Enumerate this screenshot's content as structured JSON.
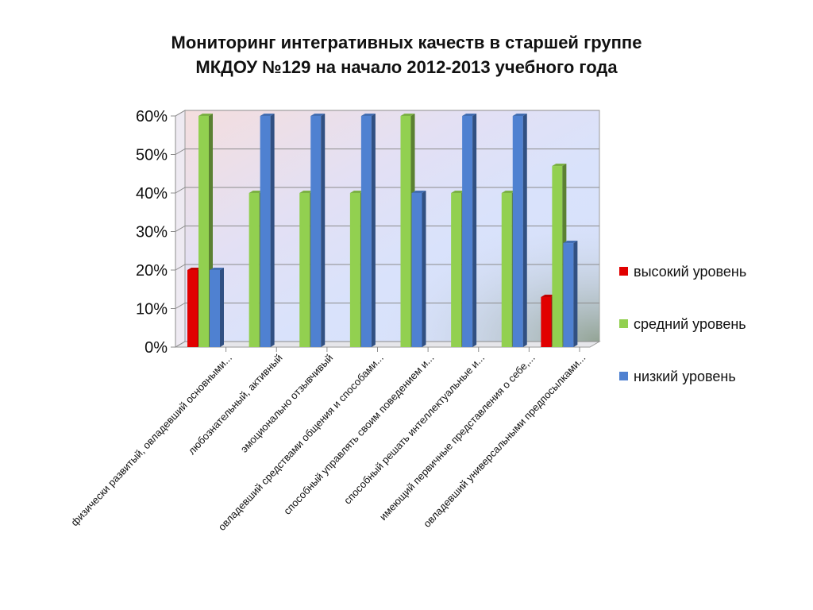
{
  "chart_data": {
    "type": "bar",
    "title_line1": "Мониторинг интегративных качеств в старшей группе",
    "title_line2": "МКДОУ №129 на начало 2012-2013 учебного года",
    "categories": [
      "физически развитый, овладевший основными...",
      "любознательный, активный",
      "эмоционально отзывчивый",
      "овладевший средствами общения и способами...",
      "способный управлять своим поведением и...",
      "способный решать интеллектуальные и...",
      "имеющий первичные представления о себе,...",
      "овладевший универсальными предпосылками..."
    ],
    "series": [
      {
        "name": "высокий уровень",
        "color": "#e10000",
        "values": [
          20,
          0,
          0,
          0,
          0,
          0,
          0,
          13
        ]
      },
      {
        "name": "средний уровень",
        "color": "#92d050",
        "values": [
          60,
          40,
          40,
          40,
          60,
          40,
          40,
          47
        ]
      },
      {
        "name": "низкий уровень",
        "color": "#4f81d1",
        "values": [
          20,
          60,
          60,
          60,
          40,
          60,
          60,
          27
        ]
      }
    ],
    "yticks": [
      "0%",
      "10%",
      "20%",
      "30%",
      "40%",
      "50%",
      "60%"
    ],
    "ylim": [
      0,
      60
    ],
    "grid": true,
    "legend_position": "right"
  }
}
